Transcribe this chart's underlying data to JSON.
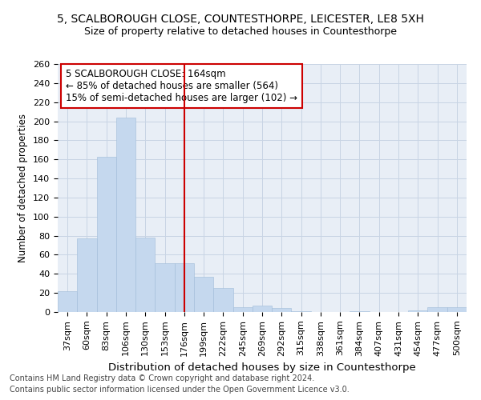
{
  "title1": "5, SCALBOROUGH CLOSE, COUNTESTHORPE, LEICESTER, LE8 5XH",
  "title2": "Size of property relative to detached houses in Countesthorpe",
  "xlabel": "Distribution of detached houses by size in Countesthorpe",
  "ylabel": "Number of detached properties",
  "categories": [
    "37sqm",
    "60sqm",
    "83sqm",
    "106sqm",
    "130sqm",
    "153sqm",
    "176sqm",
    "199sqm",
    "222sqm",
    "245sqm",
    "269sqm",
    "292sqm",
    "315sqm",
    "338sqm",
    "361sqm",
    "384sqm",
    "407sqm",
    "431sqm",
    "454sqm",
    "477sqm",
    "500sqm"
  ],
  "values": [
    22,
    77,
    163,
    204,
    78,
    51,
    51,
    37,
    25,
    5,
    7,
    4,
    1,
    0,
    0,
    1,
    0,
    0,
    2,
    5,
    5
  ],
  "bar_color": "#c5d8ee",
  "bar_edge_color": "#a0bcd8",
  "vline_x": 6.0,
  "vline_color": "#cc0000",
  "annotation_line1": "5 SCALBOROUGH CLOSE: 164sqm",
  "annotation_line2": "← 85% of detached houses are smaller (564)",
  "annotation_line3": "15% of semi-detached houses are larger (102) →",
  "annotation_box_color": "#cc0000",
  "ylim": [
    0,
    260
  ],
  "yticks": [
    0,
    20,
    40,
    60,
    80,
    100,
    120,
    140,
    160,
    180,
    200,
    220,
    240,
    260
  ],
  "grid_color": "#c8d4e4",
  "bg_color": "#e8eef6",
  "footer1": "Contains HM Land Registry data © Crown copyright and database right 2024.",
  "footer2": "Contains public sector information licensed under the Open Government Licence v3.0.",
  "title1_fontsize": 10,
  "title2_fontsize": 9,
  "xlabel_fontsize": 9.5,
  "ylabel_fontsize": 8.5,
  "tick_fontsize": 8,
  "footer_fontsize": 7
}
